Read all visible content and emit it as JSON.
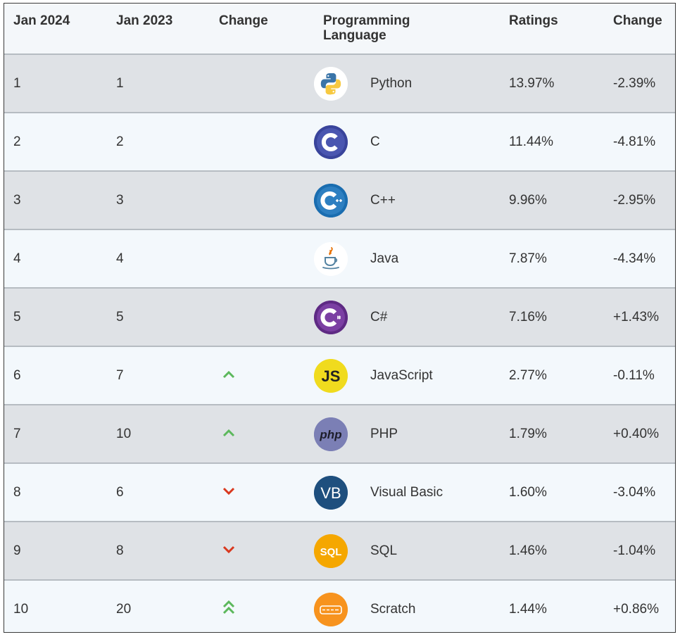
{
  "table": {
    "headers": {
      "jan2024": "Jan 2024",
      "jan2023": "Jan 2023",
      "change": "Change",
      "language_line1": "Programming",
      "language_line2": "Language",
      "ratings": "Ratings",
      "rating_change": "Change"
    },
    "rows": [
      {
        "rank2024": "1",
        "rank2023": "1",
        "trend": "none",
        "logo": "python-icon",
        "language": "Python",
        "rating": "13.97%",
        "change": "-2.39%"
      },
      {
        "rank2024": "2",
        "rank2023": "2",
        "trend": "none",
        "logo": "c-icon",
        "language": "C",
        "rating": "11.44%",
        "change": "-4.81%"
      },
      {
        "rank2024": "3",
        "rank2023": "3",
        "trend": "none",
        "logo": "cpp-icon",
        "language": "C++",
        "rating": "9.96%",
        "change": "-2.95%"
      },
      {
        "rank2024": "4",
        "rank2023": "4",
        "trend": "none",
        "logo": "java-icon",
        "language": "Java",
        "rating": "7.87%",
        "change": "-4.34%"
      },
      {
        "rank2024": "5",
        "rank2023": "5",
        "trend": "none",
        "logo": "csharp-icon",
        "language": "C#",
        "rating": "7.16%",
        "change": "+1.43%"
      },
      {
        "rank2024": "6",
        "rank2023": "7",
        "trend": "up",
        "logo": "javascript-icon",
        "language": "JavaScript",
        "rating": "2.77%",
        "change": "-0.11%"
      },
      {
        "rank2024": "7",
        "rank2023": "10",
        "trend": "up",
        "logo": "php-icon",
        "language": "PHP",
        "rating": "1.79%",
        "change": "+0.40%"
      },
      {
        "rank2024": "8",
        "rank2023": "6",
        "trend": "down",
        "logo": "visual-basic-icon",
        "language": "Visual Basic",
        "rating": "1.60%",
        "change": "-3.04%"
      },
      {
        "rank2024": "9",
        "rank2023": "8",
        "trend": "down",
        "logo": "sql-icon",
        "language": "SQL",
        "rating": "1.46%",
        "change": "-1.04%"
      },
      {
        "rank2024": "10",
        "rank2023": "20",
        "trend": "double-up",
        "logo": "scratch-icon",
        "language": "Scratch",
        "rating": "1.44%",
        "change": "+0.86%"
      }
    ],
    "logo_text": {
      "javascript": "JS",
      "php": "php",
      "visual_basic": "VB",
      "sql": "SQL"
    },
    "colors": {
      "up": "#5cb85c",
      "down": "#d9381e",
      "odd_row": "#dfe2e6",
      "even_row": "#f3f8fc",
      "row_border": "#b6bcc2"
    }
  }
}
